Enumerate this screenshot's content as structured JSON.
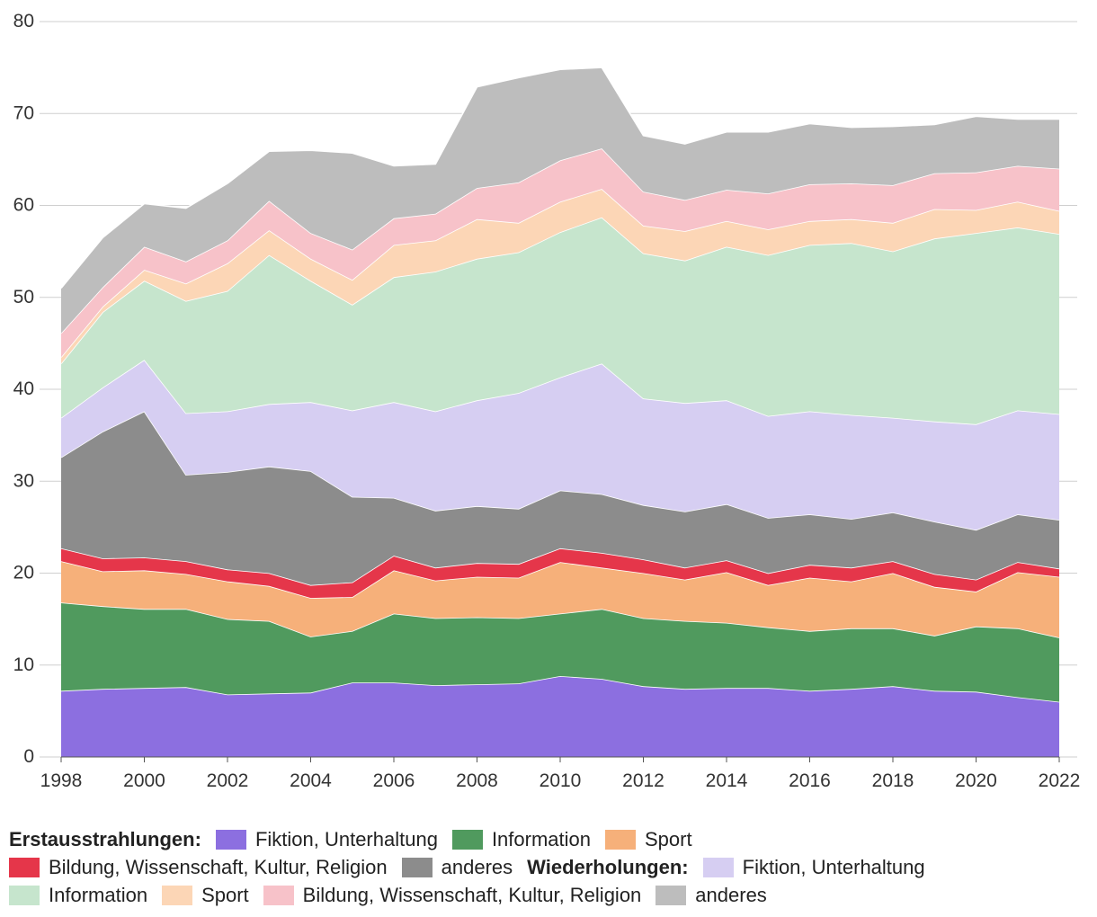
{
  "chart_data": {
    "type": "area",
    "stacked": true,
    "ylim": [
      0,
      80
    ],
    "y_ticks": [
      "0",
      "10",
      "20",
      "30",
      "40",
      "50",
      "60",
      "70",
      "80"
    ],
    "x_ticks": [
      "1998",
      "2000",
      "2002",
      "2004",
      "2006",
      "2008",
      "2010",
      "2012",
      "2014",
      "2016",
      "2018",
      "2020",
      "2022"
    ],
    "x": [
      1998,
      1999,
      2000,
      2001,
      2002,
      2003,
      2004,
      2005,
      2006,
      2007,
      2008,
      2009,
      2010,
      2011,
      2012,
      2013,
      2014,
      2015,
      2016,
      2017,
      2018,
      2019,
      2020,
      2021,
      2022
    ],
    "grid": true,
    "legend_position": "bottom",
    "legend_headings": {
      "first": "Erstausstrahlungen:",
      "repeat": "Wiederholungen:"
    },
    "series": [
      {
        "name": "Fiktion, Unterhaltung",
        "group": "first",
        "color": "#8c6fe0",
        "values": [
          7.2,
          7.4,
          7.5,
          7.6,
          6.8,
          6.9,
          7.0,
          8.1,
          8.1,
          7.8,
          7.9,
          8.0,
          8.8,
          8.5,
          7.7,
          7.4,
          7.5,
          7.5,
          7.2,
          7.4,
          7.7,
          7.2,
          7.1,
          6.5,
          6.0
        ]
      },
      {
        "name": "Information",
        "group": "first",
        "color": "#509a5e",
        "values": [
          9.6,
          9.0,
          8.6,
          8.5,
          8.2,
          7.9,
          6.1,
          5.6,
          7.5,
          7.3,
          7.3,
          7.1,
          6.8,
          7.6,
          7.4,
          7.4,
          7.1,
          6.6,
          6.5,
          6.6,
          6.3,
          6.0,
          7.1,
          7.5,
          7.0
        ]
      },
      {
        "name": "Sport",
        "group": "first",
        "color": "#f6b07a",
        "values": [
          4.5,
          3.8,
          4.2,
          3.8,
          4.1,
          3.8,
          4.2,
          3.7,
          4.7,
          4.1,
          4.4,
          4.4,
          5.6,
          4.5,
          4.9,
          4.5,
          5.5,
          4.6,
          5.8,
          5.1,
          6.0,
          5.3,
          3.8,
          6.1,
          6.6
        ]
      },
      {
        "name": "Bildung, Wissenschaft, Kultur, Religion",
        "group": "first",
        "color": "#e5364a",
        "values": [
          1.4,
          1.4,
          1.4,
          1.4,
          1.3,
          1.4,
          1.4,
          1.6,
          1.6,
          1.4,
          1.5,
          1.5,
          1.5,
          1.6,
          1.5,
          1.3,
          1.3,
          1.3,
          1.4,
          1.5,
          1.3,
          1.4,
          1.3,
          1.1,
          0.9
        ]
      },
      {
        "name": "anderes",
        "group": "first",
        "color": "#8c8c8c",
        "values": [
          9.9,
          13.8,
          15.9,
          9.4,
          10.6,
          11.6,
          12.4,
          9.3,
          6.3,
          6.2,
          6.2,
          6.0,
          6.3,
          6.4,
          5.9,
          6.1,
          6.1,
          6.0,
          5.5,
          5.3,
          5.3,
          5.7,
          5.4,
          5.2,
          5.3
        ]
      },
      {
        "name": "Fiktion, Unterhaltung",
        "group": "repeat",
        "color": "#d6cef2",
        "values": [
          4.3,
          4.8,
          5.6,
          6.7,
          6.6,
          6.8,
          7.5,
          9.4,
          10.4,
          10.8,
          11.5,
          12.6,
          12.3,
          14.2,
          11.6,
          11.8,
          11.3,
          11.1,
          11.2,
          11.3,
          10.3,
          10.9,
          11.5,
          11.3,
          11.5
        ]
      },
      {
        "name": "Information",
        "group": "repeat",
        "color": "#c6e5cd",
        "values": [
          5.9,
          8.2,
          8.6,
          12.2,
          13.1,
          16.2,
          13.2,
          11.5,
          13.6,
          15.2,
          15.4,
          15.3,
          15.8,
          15.9,
          15.8,
          15.5,
          16.7,
          17.5,
          18.1,
          18.7,
          18.1,
          19.9,
          20.8,
          19.9,
          19.6
        ]
      },
      {
        "name": "Sport",
        "group": "repeat",
        "color": "#fcd6b6",
        "values": [
          0.7,
          0.6,
          1.2,
          1.9,
          3.0,
          2.7,
          2.4,
          2.7,
          3.5,
          3.4,
          4.3,
          3.2,
          3.3,
          3.1,
          3.0,
          3.2,
          2.8,
          2.8,
          2.6,
          2.6,
          3.1,
          3.2,
          2.5,
          2.8,
          2.5
        ]
      },
      {
        "name": "Bildung, Wissenschaft, Kultur, Religion",
        "group": "repeat",
        "color": "#f7c2c9",
        "values": [
          2.6,
          2.1,
          2.5,
          2.4,
          2.5,
          3.2,
          2.8,
          3.3,
          2.9,
          2.9,
          3.4,
          4.4,
          4.5,
          4.4,
          3.7,
          3.4,
          3.4,
          3.9,
          4.0,
          3.9,
          4.1,
          3.9,
          4.1,
          3.9,
          4.6
        ]
      },
      {
        "name": "anderes",
        "group": "repeat",
        "color": "#bdbdbd",
        "values": [
          4.9,
          5.4,
          4.7,
          5.8,
          6.2,
          5.4,
          9.0,
          10.5,
          5.7,
          5.4,
          11.0,
          11.4,
          9.9,
          8.8,
          6.1,
          6.1,
          6.3,
          6.7,
          6.6,
          6.1,
          6.4,
          5.3,
          6.1,
          5.1,
          5.4
        ]
      }
    ]
  }
}
